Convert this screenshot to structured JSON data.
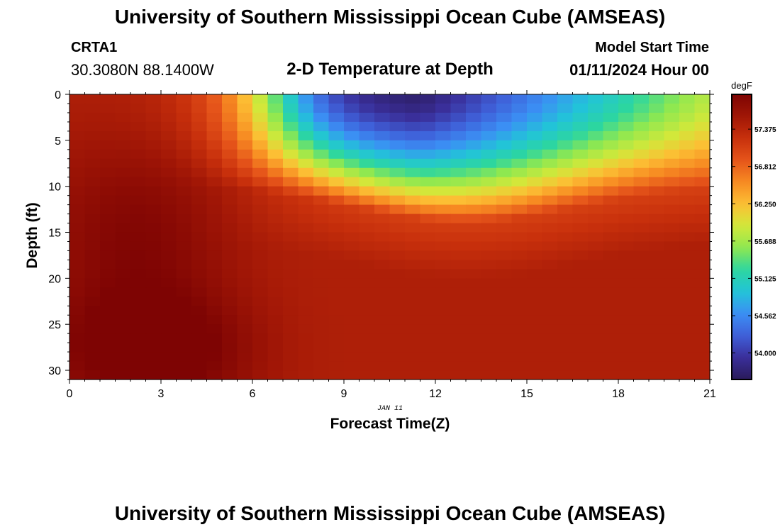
{
  "header": {
    "main_title": "University of Southern Mississippi Ocean Cube (AMSEAS)",
    "station_id": "CRTA1",
    "coordinates": "30.3080N  88.1400W",
    "subtitle": "2-D Temperature at Depth",
    "model_start_label": "Model Start Time",
    "model_start_value": "01/11/2024 Hour 00"
  },
  "footer": {
    "title": "University of Southern Mississippi Ocean Cube (AMSEAS)"
  },
  "chart_data": {
    "type": "heatmap",
    "title": "2-D Temperature at Depth",
    "xlabel": "Forecast Time(Z)",
    "ylabel": "Depth (ft)",
    "date_label": "JAN 11",
    "xlim": [
      0,
      21
    ],
    "ylim": [
      0,
      31
    ],
    "x_ticks": [
      0,
      3,
      6,
      9,
      12,
      15,
      18,
      21
    ],
    "y_ticks": [
      0,
      5,
      10,
      15,
      20,
      25,
      30
    ],
    "grid_columns": 42,
    "grid_rows": 31,
    "colorbar": {
      "unit": "degF",
      "min": 53.6,
      "max": 57.9,
      "ticks": [
        "57.375",
        "56.812",
        "56.250",
        "55.688",
        "55.125",
        "54.562",
        "54.000"
      ]
    },
    "field_description": {
      "deep_value_degF": 57.45,
      "warm_core_degF": 57.85,
      "surface_minimum_degF": 53.65,
      "surface_minimum_time": 11.5,
      "surface_late_value_degF": 55.8
    }
  },
  "colors": {
    "colormap": [
      "#2a1a5a",
      "#3a2f9a",
      "#3f5fd8",
      "#3b8ff4",
      "#22c4d8",
      "#2cd6a0",
      "#8fe850",
      "#d2e83a",
      "#fcbf34",
      "#f78a22",
      "#e5541a",
      "#c8300c",
      "#a01606",
      "#7e0403"
    ]
  }
}
